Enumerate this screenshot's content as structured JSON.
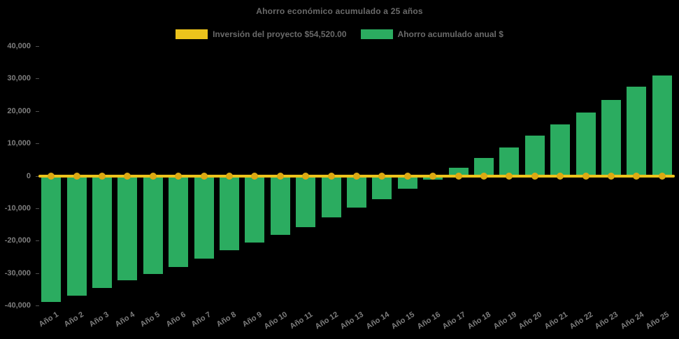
{
  "title": "Ahorro económico acumulado a 25 años",
  "legend": {
    "items": [
      {
        "id": "investment",
        "label": "Inversión del proyecto $54,520.00",
        "color": "#ECC31C"
      },
      {
        "id": "savings",
        "label": "Ahorro acumulado anual $",
        "color": "#2BAC60"
      }
    ]
  },
  "colors": {
    "background": "#000000",
    "bar": "#2BAC60",
    "line": "#ECC31C",
    "line_marker": "#DCA912",
    "title_text": "#6a6a6a",
    "axis_text": "#7e7e7e"
  },
  "y_axis": {
    "tick_labels": [
      "40,000",
      "30,000",
      "20,000",
      "10,000",
      "0",
      "-10,000",
      "-20,000",
      "-30,000",
      "-40,000"
    ]
  },
  "chart_data": {
    "type": "bar",
    "title": "Ahorro económico acumulado a 25 años",
    "xlabel": "",
    "ylabel": "",
    "ylim": [
      -40000,
      40000
    ],
    "ytick_interval": 10000,
    "grid": false,
    "legend_position": "top",
    "background": "#000000",
    "categories": [
      "Año 1",
      "Año 2",
      "Año 3",
      "Año 4",
      "Año 5",
      "Año 6",
      "Año 7",
      "Año 8",
      "Año 9",
      "Año 10",
      "Año 11",
      "Año 12",
      "Año 13",
      "Año 14",
      "Año 15",
      "Año 16",
      "Año 17",
      "Año 18",
      "Año 19",
      "Año 20",
      "Año 21",
      "Año 22",
      "Año 23",
      "Año 24",
      "Año 25"
    ],
    "series": [
      {
        "name": "Inversión del proyecto $54,520.00",
        "type": "line",
        "color": "#ECC31C",
        "marker_color": "#DCA912",
        "values": [
          0,
          0,
          0,
          0,
          0,
          0,
          0,
          0,
          0,
          0,
          0,
          0,
          0,
          0,
          0,
          0,
          0,
          0,
          0,
          0,
          0,
          0,
          0,
          0,
          0
        ]
      },
      {
        "name": "Ahorro acumulado anual $",
        "type": "bar",
        "color": "#2BAC60",
        "values": [
          -38900,
          -36900,
          -34600,
          -32300,
          -30200,
          -28100,
          -25600,
          -23000,
          -20600,
          -18300,
          -15900,
          -12800,
          -9900,
          -7200,
          -4000,
          -1100,
          2400,
          5400,
          8700,
          12300,
          15900,
          19600,
          23300,
          27400,
          31000
        ]
      }
    ]
  }
}
